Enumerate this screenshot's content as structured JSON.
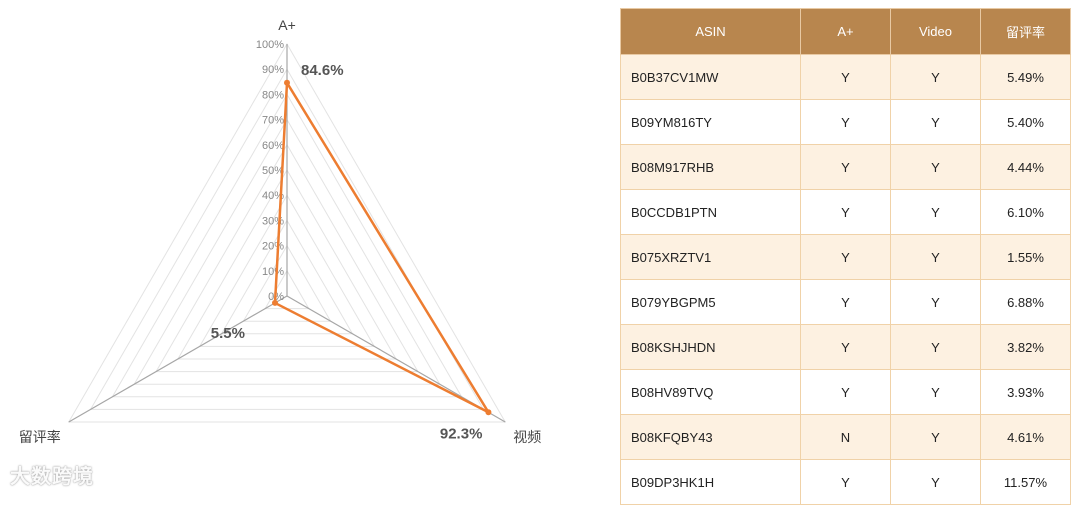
{
  "chart_data": {
    "type": "radar",
    "axes": [
      "A+",
      "视频",
      "留评率"
    ],
    "values": [
      84.6,
      92.3,
      5.5
    ],
    "value_labels": [
      "84.6%",
      "92.3%",
      "5.5%"
    ],
    "ticks": [
      "0%",
      "10%",
      "20%",
      "30%",
      "40%",
      "50%",
      "60%",
      "70%",
      "80%",
      "90%",
      "100%"
    ],
    "range": [
      0,
      100
    ],
    "series_color": "#ed7d31",
    "grid": true
  },
  "table": {
    "headers": [
      "ASIN",
      "A+",
      "Video",
      "留评率"
    ],
    "rows": [
      [
        "B0B37CV1MW",
        "Y",
        "Y",
        "5.49%"
      ],
      [
        "B09YM816TY",
        "Y",
        "Y",
        "5.40%"
      ],
      [
        "B08M917RHB",
        "Y",
        "Y",
        "4.44%"
      ],
      [
        "B0CCDB1PTN",
        "Y",
        "Y",
        "6.10%"
      ],
      [
        "B075XRZTV1",
        "Y",
        "Y",
        "1.55%"
      ],
      [
        "B079YBGPM5",
        "Y",
        "Y",
        "6.88%"
      ],
      [
        "B08KSHJHDN",
        "Y",
        "Y",
        "3.82%"
      ],
      [
        "B08HV89TVQ",
        "Y",
        "Y",
        "3.93%"
      ],
      [
        "B08KFQBY43",
        "N",
        "Y",
        "4.61%"
      ],
      [
        "B09DP3HK1H",
        "Y",
        "Y",
        "11.57%"
      ]
    ]
  },
  "watermark": "大数跨境"
}
